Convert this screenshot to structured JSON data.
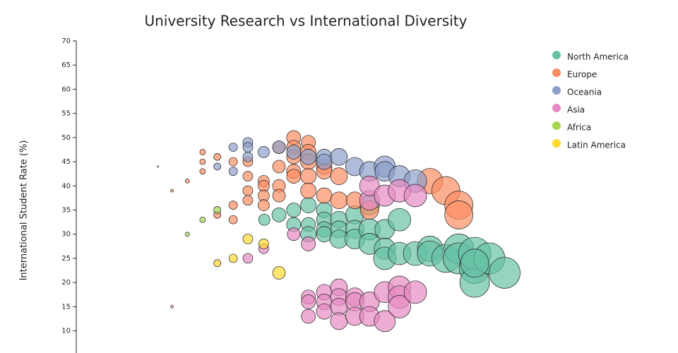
{
  "chart_data": {
    "type": "bubble",
    "title": "University Research vs International Diversity",
    "y_label": "International Student Rate (%)",
    "xlim": [
      0,
      100
    ],
    "ylim": [
      0,
      70
    ],
    "yticks": [
      10,
      15,
      20,
      25,
      30,
      35,
      40,
      45,
      50,
      55,
      60,
      65,
      70
    ],
    "series": [
      {
        "name": "North America",
        "color": "#66c2a5",
        "x": [
          32.0,
          34.5,
          37.0,
          37.0,
          39.5,
          39.5,
          39.5,
          42.2,
          42.2,
          42.2,
          42.2,
          44.7,
          44.7,
          44.7,
          47.4,
          47.4,
          47.4,
          49.9,
          49.9,
          49.9,
          52.5,
          52.5,
          52.5,
          55.0,
          55.0,
          57.7,
          60.2,
          60.2,
          62.9,
          65.1,
          65.1,
          67.8,
          67.8,
          67.8,
          70.3,
          67.8,
          72.9
        ],
        "values": [
          33,
          34,
          35,
          32,
          36,
          32,
          30,
          35,
          33,
          31,
          30,
          33,
          31,
          29,
          34,
          31,
          29,
          36,
          31,
          28,
          31,
          27,
          25,
          33,
          26,
          26,
          27,
          26,
          25,
          27,
          25,
          23,
          20,
          26,
          25,
          24,
          22
        ],
        "sizes": [
          8,
          10,
          10,
          10,
          11,
          10,
          11,
          11,
          11,
          11,
          11,
          12,
          12,
          13,
          13,
          13,
          14,
          14,
          15,
          15,
          14,
          15,
          16,
          16,
          16,
          17,
          18,
          18,
          20,
          21,
          22,
          22,
          21,
          23,
          22,
          20,
          22
        ]
      },
      {
        "name": "Europe",
        "color": "#fc8d62",
        "x": [
          21.5,
          21.5,
          21.5,
          24.0,
          24.0,
          26.7,
          26.7,
          26.7,
          29.2,
          29.2,
          29.2,
          29.2,
          31.9,
          31.9,
          31.9,
          31.9,
          34.5,
          34.5,
          34.5,
          34.5,
          37.0,
          37.0,
          37.0,
          37.0,
          37.0,
          39.5,
          39.5,
          39.5,
          39.5,
          39.5,
          42.2,
          42.2,
          42.2,
          44.7,
          44.7,
          47.4,
          49.9,
          60.2,
          62.9,
          65.1,
          65.1,
          18.9,
          16.3
        ],
        "values": [
          47,
          45,
          43,
          46,
          34,
          45,
          36,
          33,
          45,
          42,
          39,
          37,
          41,
          40,
          38,
          36,
          48,
          44,
          40,
          38,
          50,
          48,
          46,
          43,
          42,
          49,
          47,
          45,
          42,
          39,
          44,
          43,
          38,
          42,
          37,
          37,
          35,
          41,
          39,
          36,
          34,
          41,
          39
        ],
        "sizes": [
          4,
          4,
          4,
          5,
          5,
          6,
          6,
          6,
          7,
          7,
          7,
          7,
          8,
          8,
          8,
          8,
          9,
          9,
          9,
          9,
          10,
          10,
          10,
          10,
          10,
          10,
          11,
          11,
          11,
          11,
          11,
          11,
          11,
          12,
          12,
          12,
          13,
          18,
          20,
          20,
          20,
          3,
          2
        ]
      },
      {
        "name": "Oceania",
        "color": "#8da0cb",
        "x": [
          13.9,
          24.0,
          26.7,
          26.7,
          29.2,
          29.2,
          29.2,
          31.9,
          34.5,
          37.0,
          39.5,
          42.2,
          42.2,
          44.7,
          47.4,
          49.9,
          52.5,
          52.5,
          55.0,
          57.7
        ],
        "values": [
          44,
          44,
          48,
          43,
          49,
          48,
          46,
          47,
          48,
          47,
          46,
          46,
          45,
          46,
          44,
          43,
          44,
          43,
          42,
          41
        ],
        "sizes": [
          1,
          5,
          6,
          6,
          7,
          7,
          7,
          8,
          9,
          10,
          11,
          11,
          11,
          12,
          13,
          14,
          15,
          14,
          15,
          16
        ]
      },
      {
        "name": "Asia",
        "color": "#e78ac3",
        "x": [
          16.3,
          29.2,
          31.9,
          37.0,
          39.5,
          39.5,
          39.5,
          39.5,
          42.2,
          42.2,
          42.2,
          44.7,
          44.7,
          44.7,
          44.7,
          47.4,
          47.4,
          47.4,
          49.9,
          49.9,
          49.9,
          49.9,
          52.5,
          52.5,
          52.5,
          55.0,
          55.0,
          55.0,
          55.0,
          57.7,
          57.7
        ],
        "values": [
          15,
          25,
          27,
          30,
          28,
          17,
          16,
          13,
          18,
          16,
          14,
          19,
          17,
          15,
          12,
          17,
          16,
          13,
          16,
          13,
          37,
          40,
          18,
          12,
          38,
          19,
          17,
          15,
          39,
          18,
          38
        ],
        "sizes": [
          2,
          7,
          7,
          9,
          10,
          10,
          10,
          10,
          11,
          11,
          11,
          12,
          12,
          12,
          12,
          13,
          13,
          13,
          14,
          14,
          14,
          14,
          15,
          15,
          15,
          16,
          16,
          16,
          16,
          16,
          16
        ]
      },
      {
        "name": "Africa",
        "color": "#a6d854",
        "x": [
          18.9,
          21.5,
          24.0
        ],
        "values": [
          30,
          33,
          35
        ],
        "sizes": [
          3,
          4,
          5
        ]
      },
      {
        "name": "Latin America",
        "color": "#ffd92f",
        "x": [
          24.0,
          26.7,
          29.2,
          31.9,
          34.5
        ],
        "values": [
          24,
          25,
          29,
          28,
          22
        ],
        "sizes": [
          5,
          6,
          7,
          7,
          9
        ]
      }
    ]
  }
}
